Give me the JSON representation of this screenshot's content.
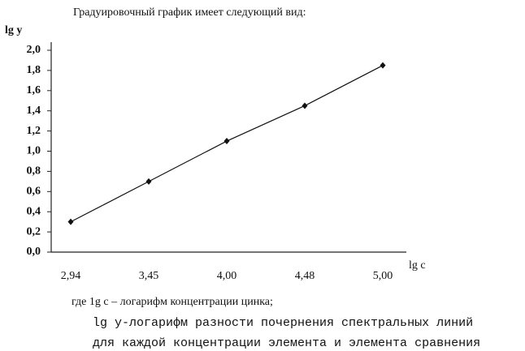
{
  "heading": "Градуировочный график имеет следующий вид:",
  "chart_data": {
    "type": "line",
    "ylabel": "lg y",
    "xlabel": "lg c",
    "categories": [
      "2,94",
      "3,45",
      "4,00",
      "4,48",
      "5,00"
    ],
    "values": [
      0.3,
      0.7,
      1.1,
      1.45,
      1.85
    ],
    "color": "#111111",
    "ylim": [
      0,
      2.0
    ],
    "yticks": [
      {
        "value": 0,
        "label": "0,0"
      },
      {
        "value": 0.2,
        "label": "0,2"
      },
      {
        "value": 0.4,
        "label": "0,4"
      },
      {
        "value": 0.6,
        "label": "0,6"
      },
      {
        "value": 0.8,
        "label": "0,8"
      },
      {
        "value": 1.0,
        "label": "1,0"
      },
      {
        "value": 1.2,
        "label": "1,2"
      },
      {
        "value": 1.4,
        "label": "1,4"
      },
      {
        "value": 1.6,
        "label": "1,6"
      },
      {
        "value": 1.8,
        "label": "1,8"
      },
      {
        "value": 2.0,
        "label": "2,0"
      }
    ]
  },
  "notes": [
    "где 1g c – логарифм концентрации цинка;",
    "lg y-логарифм разности почернения спектральных линий",
    "для каждой концентрации элемента и элемента сравнения"
  ]
}
